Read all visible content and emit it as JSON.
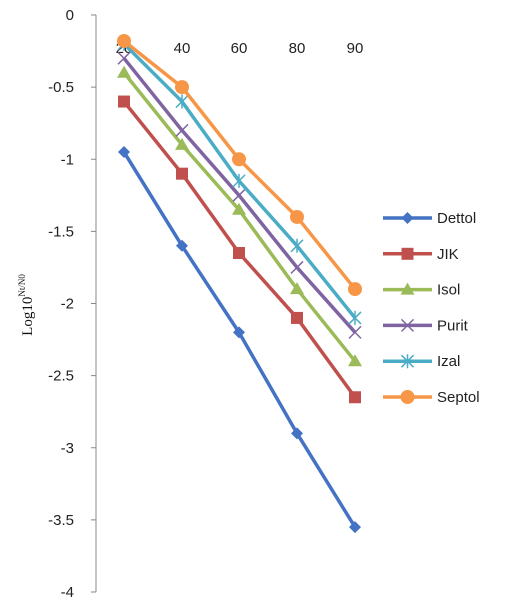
{
  "chart_data": {
    "type": "line",
    "x": [
      20,
      40,
      60,
      80,
      90
    ],
    "series": [
      {
        "name": "Dettol",
        "values": [
          -0.95,
          -1.6,
          -2.2,
          -2.9,
          -3.55
        ],
        "color": "#4472C4",
        "marker": "diamond"
      },
      {
        "name": "JIK",
        "values": [
          -0.6,
          -1.1,
          -1.65,
          -2.1,
          -2.65
        ],
        "color": "#C0504D",
        "marker": "square"
      },
      {
        "name": "Isol",
        "values": [
          -0.4,
          -0.9,
          -1.35,
          -1.9,
          -2.4
        ],
        "color": "#9BBB59",
        "marker": "triangle"
      },
      {
        "name": "Purit",
        "values": [
          -0.3,
          -0.8,
          -1.25,
          -1.75,
          -2.2
        ],
        "color": "#8064A2",
        "marker": "x"
      },
      {
        "name": "Izal",
        "values": [
          -0.2,
          -0.6,
          -1.15,
          -1.6,
          -2.1
        ],
        "color": "#4BACC6",
        "marker": "star"
      },
      {
        "name": "Septol",
        "values": [
          -0.18,
          -0.5,
          -1.0,
          -1.4,
          -1.9
        ],
        "color": "#F79646",
        "marker": "circle"
      }
    ],
    "ylim": [
      -4,
      0
    ],
    "y_ticks": [
      "0",
      "-0.5",
      "-1",
      "-1.5",
      "-2",
      "-2.5",
      "-3",
      "-3.5",
      "-4"
    ],
    "x_tick_labels": [
      "20",
      "40",
      "60",
      "80",
      "90"
    ],
    "ylabel_main": "Log10",
    "ylabel_sup": "Nt/N0",
    "xlabel": "",
    "grid": false,
    "legend_position": "right"
  }
}
